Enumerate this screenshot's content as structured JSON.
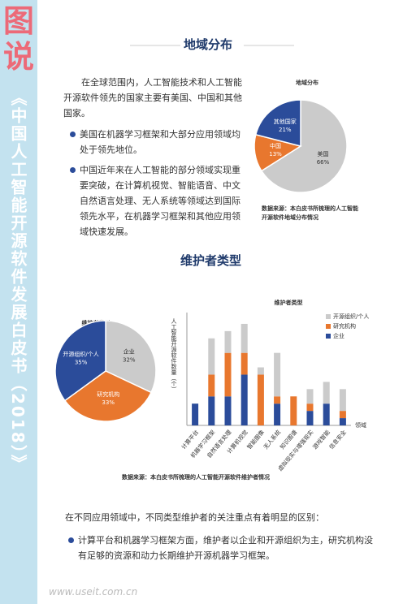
{
  "sidebar": {
    "logo": "图说",
    "title": "《中国人工智能开源软件发展白皮书（2018）》"
  },
  "section1": {
    "heading": "地域分布",
    "intro": "在全球范围内，人工智能技术和人工智能开源软件领先的国家主要有美国、中国和其他国家。",
    "bullets": [
      "美国在机器学习框架和大部分应用领域均处于领先地位。",
      "中国近年来在人工智能的部分领域实现重要突破，在计算机视觉、智能语音、中文自然语言处理、无人系统等领域达到国际领先水平，在机器学习框架和其他应用领域快速发展。"
    ]
  },
  "section2": {
    "heading": "维护者类型"
  },
  "chart_data": [
    {
      "type": "pie",
      "title": "地域分布",
      "categories": [
        "美国",
        "中国",
        "其他国家"
      ],
      "values": [
        66,
        13,
        21
      ],
      "value_labels": [
        "66%",
        "13%",
        "21%"
      ],
      "colors": [
        "#cbcbcb",
        "#e8772e",
        "#2b4c9a"
      ],
      "source": "数据来源：本白皮书所梳理的人工智能开源软件地域分布情况"
    },
    {
      "type": "pie",
      "title": "维护者类型",
      "categories": [
        "企业",
        "研究机构",
        "开源组织/个人"
      ],
      "values": [
        32,
        33,
        35
      ],
      "value_labels": [
        "32%",
        "33%",
        "35%"
      ],
      "colors": [
        "#cbcbcb",
        "#e8772e",
        "#2b4c9a"
      ]
    },
    {
      "type": "bar",
      "stacked": true,
      "title": "维护者类型",
      "ylabel": "人工智能开源软件数量（个）",
      "xlabel": "领域",
      "legend": "top-right",
      "ylim": [
        0,
        15
      ],
      "categories": [
        "计算平台",
        "机器学习框架",
        "自然语言处理",
        "计算机视觉",
        "智能图像",
        "无人系统",
        "知识图谱",
        "虚拟现实与增强现实",
        "游戏智能",
        "信息安全"
      ],
      "series": [
        {
          "name": "企业",
          "color": "#2b4c9a",
          "values": [
            3,
            4,
            4,
            7,
            0,
            3,
            0,
            2,
            3,
            1
          ]
        },
        {
          "name": "研究机构",
          "color": "#e8772e",
          "values": [
            0,
            3,
            6,
            3,
            7,
            1,
            4,
            1,
            0,
            1
          ]
        },
        {
          "name": "开源组织/个人",
          "color": "#cbcbcb",
          "values": [
            0,
            5,
            3,
            4,
            1,
            6,
            0,
            2,
            3,
            3
          ]
        }
      ],
      "source": "数据来源：本白皮书所梳理的人工智能开源软件维护者情况"
    }
  ],
  "closing": {
    "intro": "在不同应用领域中，不同类型维护者的关注重点有着明显的区别：",
    "bullets": [
      "计算平台和机器学习框架方面，维护者以企业和开源组织为主，研究机构没有足够的资源和动力长期维护开源机器学习框架。"
    ]
  },
  "watermark": "www.useit.com.cn"
}
